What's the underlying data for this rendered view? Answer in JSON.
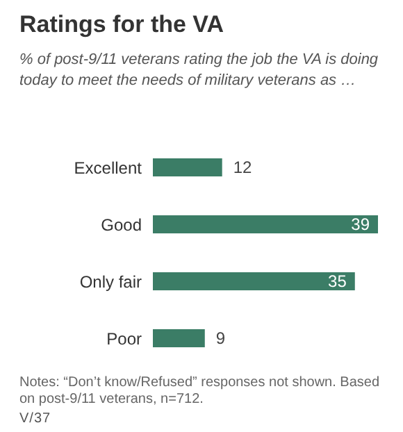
{
  "chart_data": {
    "type": "bar",
    "orientation": "horizontal",
    "title": "Ratings for the VA",
    "subtitle": "% of post-9/11 veterans rating the job the VA is doing today to meet the needs of military veterans as …",
    "categories": [
      "Excellent",
      "Good",
      "Only fair",
      "Poor"
    ],
    "values": [
      12,
      39,
      35,
      9
    ],
    "color": "#3b7d66",
    "data_labels": true,
    "annotations": [
      "Notes: “Don’t know/Refused” responses not shown. Based on post-9/11 veterans, n=712.",
      "V/37"
    ]
  }
}
